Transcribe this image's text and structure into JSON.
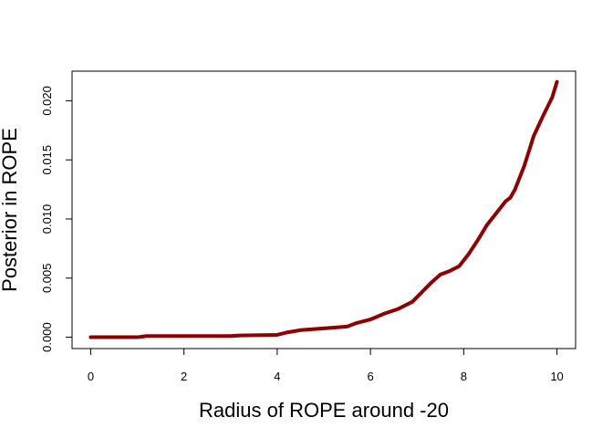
{
  "chart_data": {
    "type": "line",
    "title": "",
    "xlabel": "Radius of ROPE around -20",
    "ylabel": "Posterior in ROPE",
    "xlim": [
      -0.4,
      10.4
    ],
    "ylim": [
      -0.00096,
      0.0225
    ],
    "x_ticks": [
      0,
      2,
      4,
      6,
      8,
      10
    ],
    "x_tick_labels": [
      "0",
      "2",
      "4",
      "6",
      "8",
      "10"
    ],
    "y_ticks": [
      0.0,
      0.005,
      0.01,
      0.015,
      0.02
    ],
    "y_tick_labels": [
      "0.000",
      "0.005",
      "0.010",
      "0.015",
      "0.020"
    ],
    "grid": false,
    "legend": "none",
    "line_color": "#8B0000",
    "series": [
      {
        "x": [
          0,
          1,
          1.2,
          2,
          3,
          3.2,
          4,
          4.2,
          4.5,
          5,
          5.5,
          5.7,
          6,
          6.3,
          6.6,
          6.9,
          7.1,
          7.3,
          7.5,
          7.7,
          7.9,
          8.1,
          8.3,
          8.5,
          8.7,
          8.9,
          9.0,
          9.1,
          9.3,
          9.5,
          9.7,
          9.9,
          10
        ],
        "y": [
          0.0,
          0.0,
          0.0001,
          0.0001,
          0.0001,
          0.00015,
          0.0002,
          0.0004,
          0.0006,
          0.00075,
          0.0009,
          0.0012,
          0.0015,
          0.002,
          0.0024,
          0.003,
          0.0038,
          0.0046,
          0.0053,
          0.0056,
          0.006,
          0.007,
          0.0082,
          0.0095,
          0.0105,
          0.0115,
          0.0118,
          0.0125,
          0.0145,
          0.017,
          0.0187,
          0.0203,
          0.0216
        ]
      }
    ]
  }
}
